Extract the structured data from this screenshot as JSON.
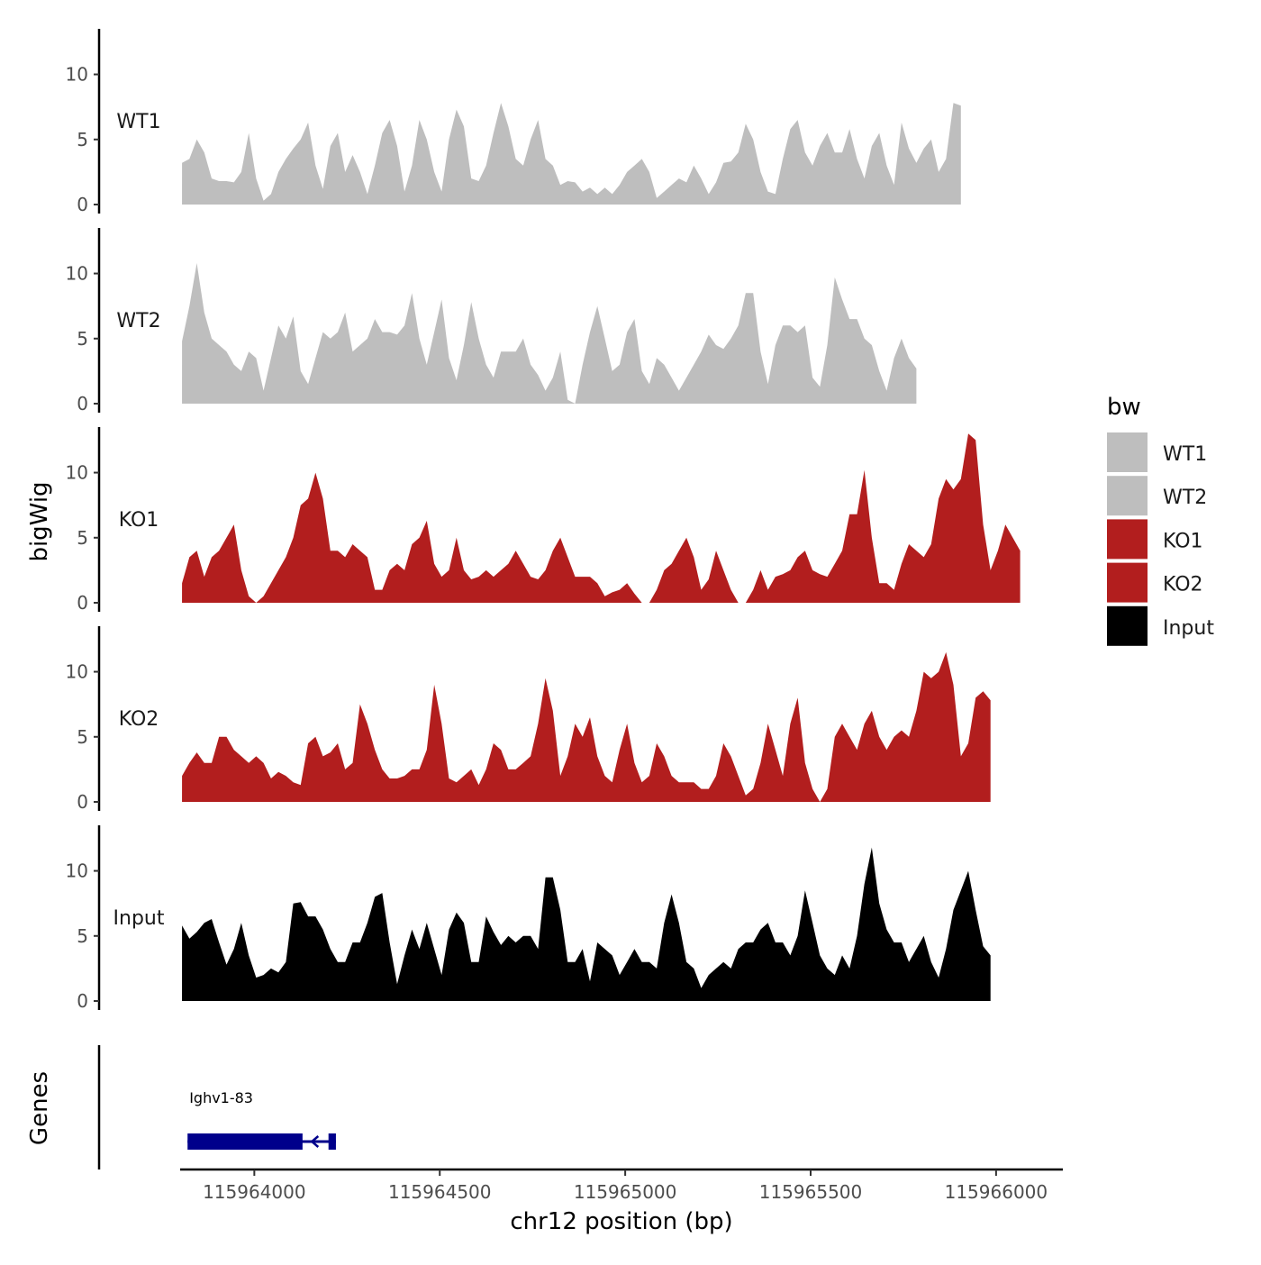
{
  "chart_data": {
    "type": "area",
    "title": "",
    "ylabel": "bigWig",
    "gene_panel_label": "Genes",
    "xlabel": "chr12 position (bp)",
    "x_range": [
      115963800,
      115966180
    ],
    "x_ticks": [
      115964000,
      115964500,
      115965000,
      115965500,
      115966000
    ],
    "x_tick_labels": [
      "115964000",
      "115964500",
      "115965000",
      "115965500",
      "115966000"
    ],
    "ylim": [
      0,
      13.5
    ],
    "y_ticks": [
      0,
      5,
      10
    ],
    "y_tick_labels": [
      "0",
      "5",
      "10"
    ],
    "x_step": 20,
    "x_start": 115963805,
    "legend": {
      "title": "bw",
      "position": "right",
      "entries": [
        {
          "label": "WT1",
          "color": "#bebebe"
        },
        {
          "label": "WT2",
          "color": "#bebebe"
        },
        {
          "label": "KO1",
          "color": "#b21e1e"
        },
        {
          "label": "KO2",
          "color": "#b21e1e"
        },
        {
          "label": "Input",
          "color": "#000000"
        }
      ]
    },
    "series": [
      {
        "name": "WT1",
        "color": "#bebebe",
        "values": [
          3.2,
          3.5,
          5,
          4,
          2,
          1.8,
          1.8,
          1.7,
          2.5,
          5.5,
          2,
          0.3,
          0.8,
          2.5,
          3.5,
          4.3,
          5,
          6.3,
          3,
          1.2,
          4.5,
          5.5,
          2.5,
          3.8,
          2.5,
          0.8,
          3,
          5.5,
          6.5,
          4.5,
          1,
          3,
          6.5,
          5,
          2.5,
          1,
          5,
          7.3,
          6,
          2,
          1.8,
          3,
          5.5,
          7.8,
          6,
          3.5,
          3,
          5,
          6.5,
          3.5,
          3,
          1.5,
          1.8,
          1.7,
          1,
          1.3,
          0.8,
          1.3,
          0.8,
          1.5,
          2.5,
          3,
          3.5,
          2.5,
          0.5,
          1,
          1.5,
          2,
          1.7,
          3,
          2,
          0.8,
          1.7,
          3.2,
          3.3,
          4,
          6.2,
          5,
          2.5,
          1,
          0.8,
          3.5,
          5.8,
          6.5,
          4,
          3,
          4.5,
          5.5,
          4,
          4,
          5.8,
          3.5,
          2,
          4.5,
          5.5,
          3,
          1.5,
          6.3,
          4.3,
          3.2,
          4.3,
          5,
          2.5,
          3.5,
          7.8,
          7.6
        ]
      },
      {
        "name": "WT2",
        "color": "#bebebe",
        "values": [
          4.8,
          7.5,
          10.8,
          7,
          5,
          4.5,
          4,
          3,
          2.5,
          4,
          3.5,
          1,
          3.5,
          6,
          5,
          6.7,
          2.5,
          1.5,
          3.5,
          5.5,
          5,
          5.5,
          7,
          4,
          4.5,
          5,
          6.5,
          5.5,
          5.5,
          5.3,
          6,
          8.5,
          5,
          3,
          5.5,
          8,
          3.5,
          1.8,
          4.5,
          7.8,
          5,
          3,
          2,
          4,
          4,
          4,
          5,
          3,
          2.2,
          1,
          2,
          4,
          0.3,
          0,
          3,
          5.5,
          7.5,
          5,
          2.5,
          3,
          5.5,
          6.5,
          2.5,
          1.5,
          3.5,
          3,
          2,
          1,
          2,
          3,
          4,
          5.3,
          4.5,
          4.2,
          5,
          6,
          8.5,
          8.5,
          4,
          1.5,
          4.5,
          6,
          6,
          5.5,
          6,
          2,
          1.3,
          4.5,
          9.7,
          8,
          6.5,
          6.5,
          5,
          4.5,
          2.5,
          1,
          3.5,
          5,
          3.5,
          2.7
        ]
      },
      {
        "name": "KO1",
        "color": "#b21e1e",
        "values": [
          1.5,
          3.5,
          4,
          2,
          3.5,
          4,
          5,
          6,
          2.5,
          0.5,
          -0.5,
          0.5,
          1.5,
          2.5,
          3.5,
          5,
          7.5,
          8,
          10,
          8,
          4,
          4,
          3.5,
          4.5,
          4,
          3.5,
          1,
          1,
          2.5,
          3,
          2.5,
          4.5,
          5,
          6.3,
          3,
          2,
          2.5,
          5,
          2.5,
          1.8,
          2,
          2.5,
          2,
          2.5,
          3,
          4,
          3,
          2,
          1.8,
          2.5,
          4,
          5,
          3.5,
          2,
          2,
          2,
          1.5,
          0.5,
          0.8,
          1,
          1.5,
          0.7,
          -0.5,
          -0.5,
          1,
          2.5,
          3,
          4,
          5,
          3.5,
          1,
          1.8,
          4,
          2.5,
          1,
          0,
          -0.5,
          1,
          2.5,
          1,
          2,
          2.2,
          2.5,
          3.5,
          4,
          2.5,
          2.2,
          2,
          3,
          4,
          6.8,
          6.8,
          10.2,
          5,
          1.5,
          1.5,
          1,
          3,
          4.5,
          4,
          3.5,
          4.5,
          8,
          9.5,
          8.7,
          9.5,
          13,
          12.5,
          6,
          2.5,
          4,
          6,
          5,
          4
        ]
      },
      {
        "name": "KO2",
        "color": "#b21e1e",
        "values": [
          2,
          3,
          3.8,
          3,
          3,
          5,
          5,
          4,
          3.5,
          3,
          3.5,
          3,
          1.8,
          2.3,
          2,
          1.5,
          1.3,
          4.5,
          5,
          3.5,
          3.8,
          4.5,
          2.5,
          3,
          7.5,
          6,
          4,
          2.5,
          1.8,
          1.8,
          2,
          2.5,
          2.5,
          4,
          9,
          6,
          1.8,
          1.5,
          2,
          2.5,
          1.3,
          2.5,
          4.5,
          4,
          2.5,
          2.5,
          3,
          3.5,
          6,
          9.5,
          7,
          2,
          3.5,
          6,
          5,
          6.5,
          3.5,
          2,
          1.5,
          4,
          6,
          3,
          1.5,
          2,
          4.5,
          3.5,
          2,
          1.5,
          1.5,
          1.5,
          1,
          1,
          2,
          4.5,
          3.5,
          2,
          0.5,
          1,
          3,
          6,
          4,
          2,
          6,
          8,
          3,
          1,
          0,
          1,
          5,
          6,
          5,
          4,
          6,
          7,
          5,
          4,
          5,
          5.5,
          5,
          7,
          10,
          9.5,
          10,
          11.5,
          9,
          3.5,
          4.5,
          8,
          8.5,
          7.8
        ]
      },
      {
        "name": "Input",
        "color": "#000000",
        "values": [
          5.8,
          4.8,
          5.3,
          6,
          6.3,
          4.5,
          2.8,
          4,
          6,
          3.5,
          1.8,
          2,
          2.5,
          2.2,
          3,
          7.5,
          7.6,
          6.5,
          6.5,
          5.5,
          4,
          3,
          3,
          4.5,
          4.5,
          6,
          8,
          8.3,
          4.5,
          1.3,
          3.5,
          5.5,
          4,
          6,
          4,
          2,
          5.5,
          6.8,
          6,
          3,
          3,
          6.5,
          5.3,
          4.3,
          5,
          4.5,
          5,
          5,
          4,
          9.5,
          9.5,
          7,
          3,
          3,
          4,
          1.5,
          4.5,
          4,
          3.5,
          2,
          3,
          4,
          3,
          3,
          2.5,
          6,
          8.2,
          6,
          3,
          2.5,
          1,
          2,
          2.5,
          3,
          2.5,
          4,
          4.5,
          4.5,
          5.5,
          6,
          4.5,
          4.5,
          3.5,
          5,
          8.5,
          6,
          3.5,
          2.5,
          2,
          3.5,
          2.5,
          5,
          9,
          11.8,
          7.5,
          5.5,
          4.5,
          4.5,
          3,
          4,
          5,
          3,
          1.8,
          4,
          7,
          8.5,
          10,
          7,
          4.2,
          3.5
        ]
      }
    ],
    "genes": [
      {
        "name": "Ighv1-83",
        "strand": "-",
        "start": 115963820,
        "end": 115964220,
        "exons": [
          [
            115963820,
            115964130
          ],
          [
            115964200,
            115964220
          ]
        ]
      }
    ]
  }
}
